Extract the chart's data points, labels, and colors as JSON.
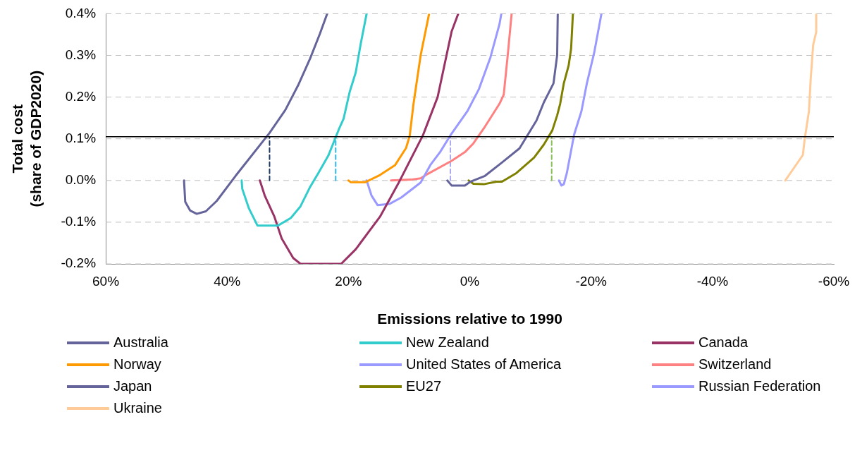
{
  "chart_data": {
    "type": "line",
    "xlabel": "Emissions relative to 1990",
    "ylabel": "Total cost\n(share of GDP2020)",
    "xlim": [
      60,
      -60
    ],
    "xticks": [
      {
        "value": 60,
        "label": "60%"
      },
      {
        "value": 40,
        "label": "40%"
      },
      {
        "value": 20,
        "label": "20%"
      },
      {
        "value": 0,
        "label": "0%"
      },
      {
        "value": -20,
        "label": "-20%"
      },
      {
        "value": -40,
        "label": "-40%"
      },
      {
        "value": -60,
        "label": "-60%"
      }
    ],
    "ylim": [
      -0.2,
      0.4
    ],
    "yticks": [
      {
        "value": -0.2,
        "label": "-0.2%"
      },
      {
        "value": -0.1,
        "label": "-0.1%"
      },
      {
        "value": 0,
        "label": "0.0%"
      },
      {
        "value": 0.1,
        "label": "0.1%"
      },
      {
        "value": 0.2,
        "label": "0.2%"
      },
      {
        "value": 0.3,
        "label": "0.3%"
      },
      {
        "value": 0.4,
        "label": "0.4%"
      }
    ],
    "grid": "y",
    "legend": "bottom",
    "marker": "none",
    "line_style": "solid",
    "ref_lines": [
      {
        "axis": "y",
        "value": 0.105,
        "color": "#000000"
      }
    ],
    "series": [
      {
        "name": "Australia",
        "color": "#64649b",
        "x": [
          47.1,
          46.9,
          46.1,
          45.0,
          43.5,
          41.7,
          38.6,
          33.0,
          30.4,
          28.3,
          26.3,
          24.7,
          23.5
        ],
        "values": [
          0.0,
          -0.051,
          -0.072,
          -0.08,
          -0.074,
          -0.049,
          0.011,
          0.114,
          0.169,
          0.228,
          0.293,
          0.352,
          0.4
        ]
      },
      {
        "name": "New Zealand",
        "color": "#33cccc",
        "x": [
          37.6,
          37.5,
          36.4,
          35.0,
          31.6,
          29.5,
          27.9,
          26.3,
          24.9,
          23.3,
          21.6,
          20.8,
          19.8,
          18.8,
          18.0,
          17.0
        ],
        "values": [
          0.0,
          -0.02,
          -0.067,
          -0.108,
          -0.108,
          -0.09,
          -0.062,
          -0.015,
          0.019,
          0.06,
          0.122,
          0.148,
          0.212,
          0.259,
          0.326,
          0.4
        ]
      },
      {
        "name": "Canada",
        "color": "#993366",
        "x": [
          34.6,
          33.8,
          32.2,
          31.0,
          29.1,
          27.9,
          21.2,
          18.8,
          14.8,
          11.7,
          7.7,
          5.3,
          3.0,
          1.9
        ],
        "values": [
          0.0,
          -0.036,
          -0.087,
          -0.139,
          -0.186,
          -0.2,
          -0.2,
          -0.165,
          -0.087,
          -0.005,
          0.109,
          0.2,
          0.357,
          0.4
        ]
      },
      {
        "name": "Norway",
        "color": "#ff9900",
        "x": [
          20.0,
          19.6,
          17.2,
          14.8,
          12.3,
          10.5,
          9.9,
          9.3,
          8.1,
          6.7
        ],
        "values": [
          0.0,
          -0.004,
          -0.004,
          0.013,
          0.037,
          0.078,
          0.107,
          0.181,
          0.3,
          0.4
        ]
      },
      {
        "name": "United States of America",
        "color": "#9999ff",
        "x": [
          17.0,
          16.2,
          15.2,
          13.2,
          11.3,
          8.1,
          6.5,
          4.9,
          3.2,
          0.4,
          -1.5,
          -3.4,
          -4.9,
          -5.2
        ],
        "values": [
          0.0,
          -0.036,
          -0.059,
          -0.056,
          -0.041,
          -0.005,
          0.037,
          0.068,
          0.108,
          0.166,
          0.219,
          0.295,
          0.375,
          0.4
        ]
      },
      {
        "name": "Switzerland",
        "color": "#ff8080",
        "x": [
          13.0,
          9.7,
          8.1,
          6.9,
          3.0,
          0.8,
          -0.6,
          -2.5,
          -4.9,
          -5.6,
          -6.3,
          -6.9
        ],
        "values": [
          0.0,
          0.002,
          0.005,
          0.016,
          0.047,
          0.068,
          0.089,
          0.129,
          0.184,
          0.206,
          0.307,
          0.4
        ]
      },
      {
        "name": "Japan",
        "color": "#64649b",
        "x": [
          3.7,
          3.0,
          0.8,
          -0.1,
          -2.5,
          -5.3,
          -8.2,
          -11.0,
          -12.2,
          -13.8,
          -14.4,
          -14.5
        ],
        "values": [
          0.0,
          -0.012,
          -0.012,
          -0.003,
          0.011,
          0.043,
          0.077,
          0.144,
          0.187,
          0.233,
          0.3,
          0.4
        ]
      },
      {
        "name": "EU27",
        "color": "#808000",
        "x": [
          0.2,
          -0.6,
          -2.3,
          -4.4,
          -5.3,
          -7.7,
          -10.6,
          -12.2,
          -13.6,
          -14.4,
          -14.9,
          -15.5,
          -16.3,
          -16.7,
          -17.0
        ],
        "values": [
          0.0,
          -0.008,
          -0.009,
          -0.003,
          -0.003,
          0.018,
          0.055,
          0.086,
          0.12,
          0.156,
          0.184,
          0.233,
          0.276,
          0.316,
          0.4
        ]
      },
      {
        "name": "Russian Federation",
        "color": "#9999ff",
        "x": [
          -14.7,
          -15.1,
          -15.5,
          -16.0,
          -17.2,
          -18.4,
          -19.3,
          -20.5,
          -21.7
        ],
        "values": [
          0.0,
          -0.012,
          -0.009,
          0.018,
          0.11,
          0.166,
          0.233,
          0.306,
          0.4
        ]
      },
      {
        "name": "Ukraine",
        "color": "#ffcc99",
        "x": [
          -52.0,
          -54.9,
          -55.2,
          -55.9,
          -56.2,
          -56.6,
          -57.1,
          -57.1
        ],
        "values": [
          0.0,
          0.061,
          0.099,
          0.166,
          0.245,
          0.325,
          0.356,
          0.4
        ]
      },
      {
        "type": "line",
        "color": "#1f3864",
        "line_style": "dashed",
        "x": [
          33.0,
          33.0
        ],
        "values": [
          0.0,
          0.105
        ]
      },
      {
        "type": "line",
        "color": "#33b5e5",
        "line_style": "dashed",
        "x": [
          22.1,
          22.1
        ],
        "values": [
          0.0,
          0.105
        ]
      },
      {
        "type": "line",
        "color": "#aaaaee",
        "line_style": "dashed",
        "x": [
          3.2,
          3.2
        ],
        "values": [
          0.0,
          0.105
        ]
      },
      {
        "type": "line",
        "color": "#88c057",
        "line_style": "dashed",
        "x": [
          -13.5,
          -13.5
        ],
        "values": [
          0.0,
          0.105
        ]
      }
    ]
  }
}
